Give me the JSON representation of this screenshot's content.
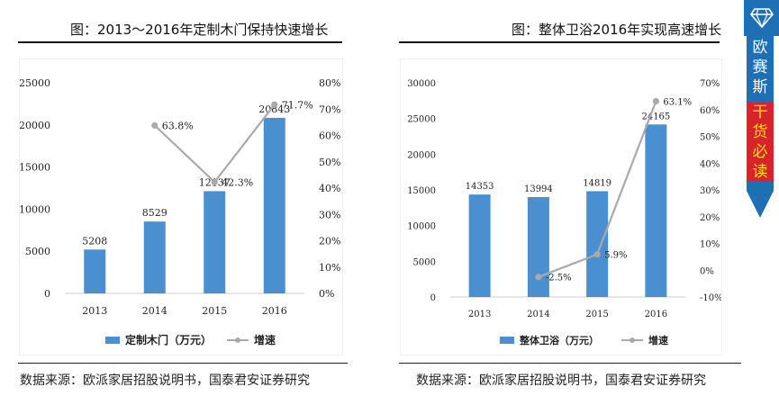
{
  "left": {
    "title": "图：2013～2016年定制木门保持快速增长",
    "source": "数据来源：欧派家居招股说明书，国泰君安证券研究"
  },
  "right": {
    "title": "图：整体卫浴2016年实现高速增长",
    "source": "数据来源：欧派家居招股说明书，国泰君安证券研究"
  },
  "badge": {
    "chars": [
      "欧",
      "赛",
      "斯",
      "干",
      "货",
      "必",
      "读"
    ],
    "icon": "diamond-icon",
    "colors": {
      "blue": "#1f6fb5",
      "red": "#d8232a",
      "yellow": "#ffe100"
    }
  },
  "chart_data": [
    {
      "type": "bar",
      "categories": [
        "2013",
        "2014",
        "2015",
        "2016"
      ],
      "series": [
        {
          "name": "定制木门（万元）",
          "values": [
            5208,
            8529,
            12137,
            20843
          ],
          "axis": "left",
          "color": "#4a8fd0"
        },
        {
          "name": "增速",
          "values": [
            null,
            63.8,
            42.3,
            71.7
          ],
          "axis": "right",
          "type": "line",
          "color": "#a9a9a9"
        }
      ],
      "value_labels": [
        "5208",
        "8529",
        "12137",
        "20843"
      ],
      "rate_labels": [
        "",
        "63.8%",
        "42.3%",
        "71.7%"
      ],
      "ylim_left": [
        0,
        25000
      ],
      "yticks_left": [
        "0",
        "5000",
        "10000",
        "15000",
        "20000",
        "25000"
      ],
      "ylim_right": [
        0,
        80
      ],
      "yticks_right": [
        "0%",
        "10%",
        "20%",
        "30%",
        "40%",
        "50%",
        "60%",
        "70%",
        "80%"
      ],
      "legend": [
        "定制木门（万元）",
        "增速"
      ],
      "legend_position": "bottom"
    },
    {
      "type": "bar",
      "categories": [
        "2013",
        "2014",
        "2015",
        "2016"
      ],
      "series": [
        {
          "name": "整体卫浴（万元）",
          "values": [
            14353,
            13994,
            14819,
            24165
          ],
          "axis": "left",
          "color": "#4a8fd0"
        },
        {
          "name": "增速",
          "values": [
            null,
            -2.5,
            5.9,
            63.1
          ],
          "axis": "right",
          "type": "line",
          "color": "#a9a9a9"
        }
      ],
      "value_labels": [
        "14353",
        "13994",
        "14819",
        "24165"
      ],
      "rate_labels": [
        "",
        "-2.5%",
        "5.9%",
        "63.1%"
      ],
      "ylim_left": [
        0,
        30000
      ],
      "yticks_left": [
        "0",
        "5000",
        "10000",
        "15000",
        "20000",
        "25000",
        "30000"
      ],
      "ylim_right": [
        -10,
        70
      ],
      "yticks_right": [
        "-10%",
        "0%",
        "10%",
        "20%",
        "30%",
        "40%",
        "50%",
        "60%",
        "70%"
      ],
      "legend": [
        "整体卫浴（万元）",
        "增速"
      ],
      "legend_position": "bottom"
    }
  ]
}
